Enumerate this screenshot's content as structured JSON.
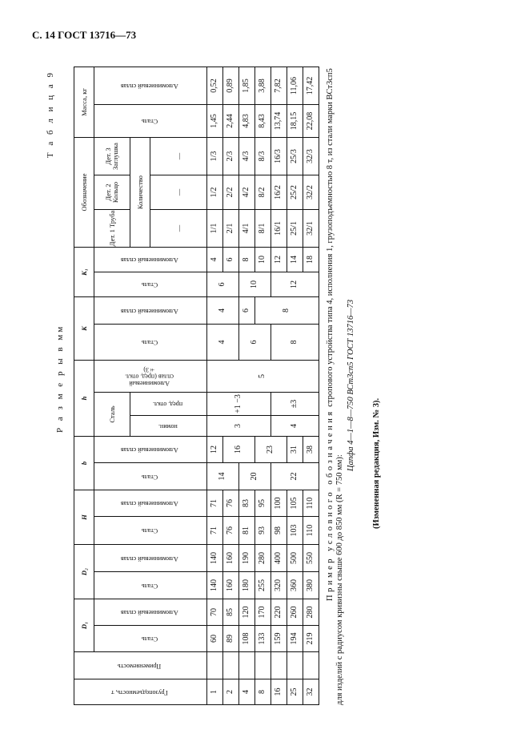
{
  "page_header": "С. 14 ГОСТ 13716—73",
  "table_number": "Т а б л и ц а  9",
  "dimensions_note": "Р а з м е р ы  в  мм",
  "headers": {
    "capacity": "Грузоподъемность, т",
    "applicability": "Применяемость",
    "D1": "D₁",
    "D2": "D₂",
    "H": "H",
    "b": "b",
    "h": "h",
    "K": "K",
    "K1": "K₁",
    "designation": "Обозначение",
    "mass": "Масса, кг",
    "steel": "Сталь",
    "alloy": "Алюминиевый сплав",
    "nominal": "номин.",
    "deviation": "пред. откл.",
    "alloy_dev": "Алюминиевый сплав (пред. откл. ±3)",
    "part1": "Дет. 1 Труба",
    "part2": "Дет. 2 Кольцо",
    "part3": "Дет. 3 Заглушка",
    "quantity": "Количество",
    "dash": "—"
  },
  "table": {
    "row_count": 7,
    "columns": [
      {
        "key": "capacity",
        "groups": [
          {
            "value": "1",
            "rows": 1
          },
          {
            "value": "2",
            "rows": 1
          },
          {
            "value": "4",
            "rows": 1
          },
          {
            "value": "8",
            "rows": 1
          },
          {
            "value": "16",
            "rows": 1
          },
          {
            "value": "25",
            "rows": 1
          },
          {
            "value": "32",
            "rows": 1
          }
        ]
      },
      {
        "key": "applicability",
        "groups": [
          {
            "value": "",
            "rows": 1
          },
          {
            "value": "",
            "rows": 1
          },
          {
            "value": "",
            "rows": 1
          },
          {
            "value": "",
            "rows": 1
          },
          {
            "value": "",
            "rows": 1
          },
          {
            "value": "",
            "rows": 1
          },
          {
            "value": "",
            "rows": 1
          }
        ]
      },
      {
        "key": "D1-steel",
        "groups": [
          {
            "value": "60",
            "rows": 1
          },
          {
            "value": "89",
            "rows": 1
          },
          {
            "value": "108",
            "rows": 1
          },
          {
            "value": "133",
            "rows": 1
          },
          {
            "value": "159",
            "rows": 1
          },
          {
            "value": "194",
            "rows": 1
          },
          {
            "value": "219",
            "rows": 1
          }
        ]
      },
      {
        "key": "D1-alloy",
        "groups": [
          {
            "value": "70",
            "rows": 1
          },
          {
            "value": "85",
            "rows": 1
          },
          {
            "value": "120",
            "rows": 1
          },
          {
            "value": "170",
            "rows": 1
          },
          {
            "value": "220",
            "rows": 1
          },
          {
            "value": "260",
            "rows": 1
          },
          {
            "value": "280",
            "rows": 1
          }
        ]
      },
      {
        "key": "D2-steel",
        "groups": [
          {
            "value": "140",
            "rows": 1
          },
          {
            "value": "160",
            "rows": 1
          },
          {
            "value": "180",
            "rows": 1
          },
          {
            "value": "255",
            "rows": 1
          },
          {
            "value": "320",
            "rows": 1
          },
          {
            "value": "360",
            "rows": 1
          },
          {
            "value": "380",
            "rows": 1
          }
        ]
      },
      {
        "key": "D2-alloy",
        "groups": [
          {
            "value": "140",
            "rows": 1
          },
          {
            "value": "160",
            "rows": 1
          },
          {
            "value": "190",
            "rows": 1
          },
          {
            "value": "280",
            "rows": 1
          },
          {
            "value": "400",
            "rows": 1
          },
          {
            "value": "500",
            "rows": 1
          },
          {
            "value": "550",
            "rows": 1
          }
        ]
      },
      {
        "key": "H-steel",
        "groups": [
          {
            "value": "71",
            "rows": 1
          },
          {
            "value": "76",
            "rows": 1
          },
          {
            "value": "81",
            "rows": 1
          },
          {
            "value": "93",
            "rows": 1
          },
          {
            "value": "98",
            "rows": 1
          },
          {
            "value": "103",
            "rows": 1
          },
          {
            "value": "110",
            "rows": 1
          }
        ]
      },
      {
        "key": "H-alloy",
        "groups": [
          {
            "value": "71",
            "rows": 1
          },
          {
            "value": "76",
            "rows": 1
          },
          {
            "value": "83",
            "rows": 1
          },
          {
            "value": "95",
            "rows": 1
          },
          {
            "value": "100",
            "rows": 1
          },
          {
            "value": "105",
            "rows": 1
          },
          {
            "value": "110",
            "rows": 1
          }
        ]
      },
      {
        "key": "b-steel",
        "groups": [
          {
            "value": "14",
            "rows": 2
          },
          {
            "value": "20",
            "rows": 2
          },
          {
            "value": "22",
            "rows": 3
          }
        ]
      },
      {
        "key": "b-alloy",
        "groups": [
          {
            "value": "12",
            "rows": 1
          },
          {
            "value": "16",
            "rows": 2
          },
          {
            "value": "23",
            "rows": 2
          },
          {
            "value": "31",
            "rows": 1
          },
          {
            "value": "38",
            "rows": 1
          }
        ]
      },
      {
        "key": "h-nominal",
        "groups": [
          {
            "value": "3",
            "rows": 4
          },
          {
            "value": "4",
            "rows": 3
          }
        ]
      },
      {
        "key": "h-deviation",
        "groups": [
          {
            "value": "+1 −3",
            "rows": 4
          },
          {
            "value": "±3",
            "rows": 3
          }
        ]
      },
      {
        "key": "h-alloy",
        "groups": [
          {
            "value": "5",
            "rows": 7
          }
        ]
      },
      {
        "key": "K-steel",
        "groups": [
          {
            "value": "4",
            "rows": 2
          },
          {
            "value": "6",
            "rows": 2
          },
          {
            "value": "8",
            "rows": 3
          }
        ]
      },
      {
        "key": "K-alloy",
        "groups": [
          {
            "value": "4",
            "rows": 2
          },
          {
            "value": "6",
            "rows": 1
          },
          {
            "value": "8",
            "rows": 4
          }
        ]
      },
      {
        "key": "K1-steel",
        "groups": [
          {
            "value": "6",
            "rows": 2
          },
          {
            "value": "10",
            "rows": 2
          },
          {
            "value": "12",
            "rows": 3
          }
        ]
      },
      {
        "key": "K1-alloy",
        "groups": [
          {
            "value": "4",
            "rows": 1
          },
          {
            "value": "6",
            "rows": 1
          },
          {
            "value": "8",
            "rows": 1
          },
          {
            "value": "10",
            "rows": 1
          },
          {
            "value": "12",
            "rows": 1
          },
          {
            "value": "14",
            "rows": 1
          },
          {
            "value": "18",
            "rows": 1
          }
        ]
      },
      {
        "key": "part1",
        "groups": [
          {
            "value": "1/1",
            "rows": 1
          },
          {
            "value": "2/1",
            "rows": 1
          },
          {
            "value": "4/1",
            "rows": 1
          },
          {
            "value": "8/1",
            "rows": 1
          },
          {
            "value": "16/1",
            "rows": 1
          },
          {
            "value": "25/1",
            "rows": 1
          },
          {
            "value": "32/1",
            "rows": 1
          }
        ]
      },
      {
        "key": "part2",
        "groups": [
          {
            "value": "1/2",
            "rows": 1
          },
          {
            "value": "2/2",
            "rows": 1
          },
          {
            "value": "4/2",
            "rows": 1
          },
          {
            "value": "8/2",
            "rows": 1
          },
          {
            "value": "16/2",
            "rows": 1
          },
          {
            "value": "25/2",
            "rows": 1
          },
          {
            "value": "32/2",
            "rows": 1
          }
        ]
      },
      {
        "key": "part3",
        "groups": [
          {
            "value": "1/3",
            "rows": 1
          },
          {
            "value": "2/3",
            "rows": 1
          },
          {
            "value": "4/3",
            "rows": 1
          },
          {
            "value": "8/3",
            "rows": 1
          },
          {
            "value": "16/3",
            "rows": 1
          },
          {
            "value": "25/3",
            "rows": 1
          },
          {
            "value": "32/3",
            "rows": 1
          }
        ]
      },
      {
        "key": "mass-steel",
        "groups": [
          {
            "value": "1,45",
            "rows": 1
          },
          {
            "value": "2,44",
            "rows": 1
          },
          {
            "value": "4,83",
            "rows": 1
          },
          {
            "value": "8,43",
            "rows": 1
          },
          {
            "value": "13,74",
            "rows": 1
          },
          {
            "value": "18,15",
            "rows": 1
          },
          {
            "value": "22,08",
            "rows": 1
          }
        ]
      },
      {
        "key": "mass-alloy",
        "groups": [
          {
            "value": "0,52",
            "rows": 1
          },
          {
            "value": "0,89",
            "rows": 1
          },
          {
            "value": "1,85",
            "rows": 1
          },
          {
            "value": "3,88",
            "rows": 1
          },
          {
            "value": "7,82",
            "rows": 1
          },
          {
            "value": "11,06",
            "rows": 1
          },
          {
            "value": "17,42",
            "rows": 1
          }
        ]
      }
    ]
  },
  "example": {
    "lead": "Пример условного обозначения",
    "text": "стропового устройства типа 4, исполнения 1, грузоподъемностью 8 т, из стали марки ВСт3сп5 для изделий с радиусом кривизны свыше 600 до 850 мм (R = 750 мм):",
    "code": "Цапфа 4—1—8—750 ВСт3сп5 ГОСТ 13716—73"
  },
  "changed_note": "(Измененная редакция, Изм. № 3)."
}
